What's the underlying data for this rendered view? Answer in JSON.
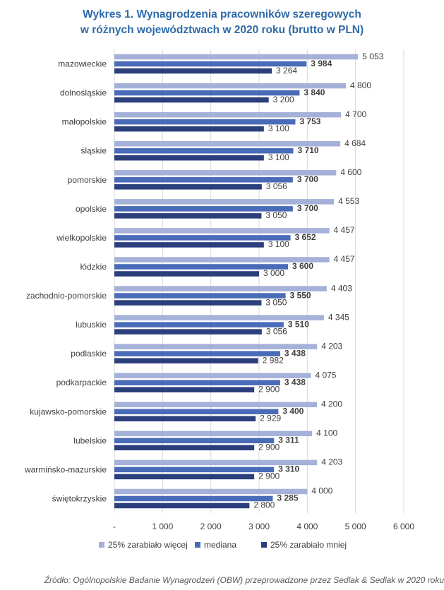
{
  "title_line1": "Wykres 1. Wynagrodzenia pracowników szeregowych",
  "title_line2": "w różnych województwach w 2020 roku (brutto w PLN)",
  "source": "Źródło: Ogólnopolskie Badanie Wynagrodzeń (OBW) przeprowadzone przez Sedlak & Sedlak w 2020 roku",
  "chart_data": {
    "type": "bar",
    "orientation": "horizontal",
    "categories": [
      "mazowieckie",
      "dolnośląskie",
      "małopolskie",
      "śląskie",
      "pomorskie",
      "opolskie",
      "wielkopolskie",
      "łódzkie",
      "zachodnio-pomorskie",
      "lubuskie",
      "podlaskie",
      "podkarpackie",
      "kujawsko-pomorskie",
      "lubelskie",
      "warmińsko-mazurskie",
      "świętokrzyskie"
    ],
    "series": [
      {
        "name": "25% zarabiało więcej",
        "color": "#a5b1d8",
        "values": [
          5053,
          4800,
          4700,
          4684,
          4600,
          4553,
          4457,
          4457,
          4403,
          4345,
          4203,
          4075,
          4200,
          4100,
          4203,
          4000
        ],
        "labels": [
          "5 053",
          "4 800",
          "4 700",
          "4 684",
          "4 600",
          "4 553",
          "4 457",
          "4 457",
          "4 403",
          "4 345",
          "4 203",
          "4 075",
          "4 200",
          "4 100",
          "4 203",
          "4 000"
        ],
        "bold": false
      },
      {
        "name": "mediana",
        "color": "#4a6bb8",
        "values": [
          3984,
          3840,
          3753,
          3710,
          3700,
          3700,
          3652,
          3600,
          3550,
          3510,
          3438,
          3438,
          3400,
          3311,
          3310,
          3285
        ],
        "labels": [
          "3 984",
          "3 840",
          "3 753",
          "3 710",
          "3 700",
          "3 700",
          "3 652",
          "3 600",
          "3 550",
          "3 510",
          "3 438",
          "3 438",
          "3 400",
          "3 311",
          "3 310",
          "3 285"
        ],
        "bold": true
      },
      {
        "name": "25% zarabiało mniej",
        "color": "#2b3f7c",
        "values": [
          3264,
          3200,
          3100,
          3100,
          3056,
          3050,
          3100,
          3000,
          3050,
          3056,
          2982,
          2900,
          2929,
          2900,
          2900,
          2800
        ],
        "labels": [
          "3 264",
          "3 200",
          "3 100",
          "3 100",
          "3 056",
          "3 050",
          "3 100",
          "3 000",
          "3 050",
          "3 056",
          "2 982",
          "2 900",
          "2 929",
          "2 900",
          "2 900",
          "2 800"
        ],
        "bold": false
      }
    ],
    "xlim": [
      0,
      6000
    ],
    "xticks": [
      0,
      1000,
      2000,
      3000,
      4000,
      5000,
      6000
    ],
    "xtick_labels": [
      "-",
      "1 000",
      "2 000",
      "3 000",
      "4 000",
      "5 000",
      "6 000"
    ],
    "grid": "vertical",
    "legend": "bottom"
  }
}
